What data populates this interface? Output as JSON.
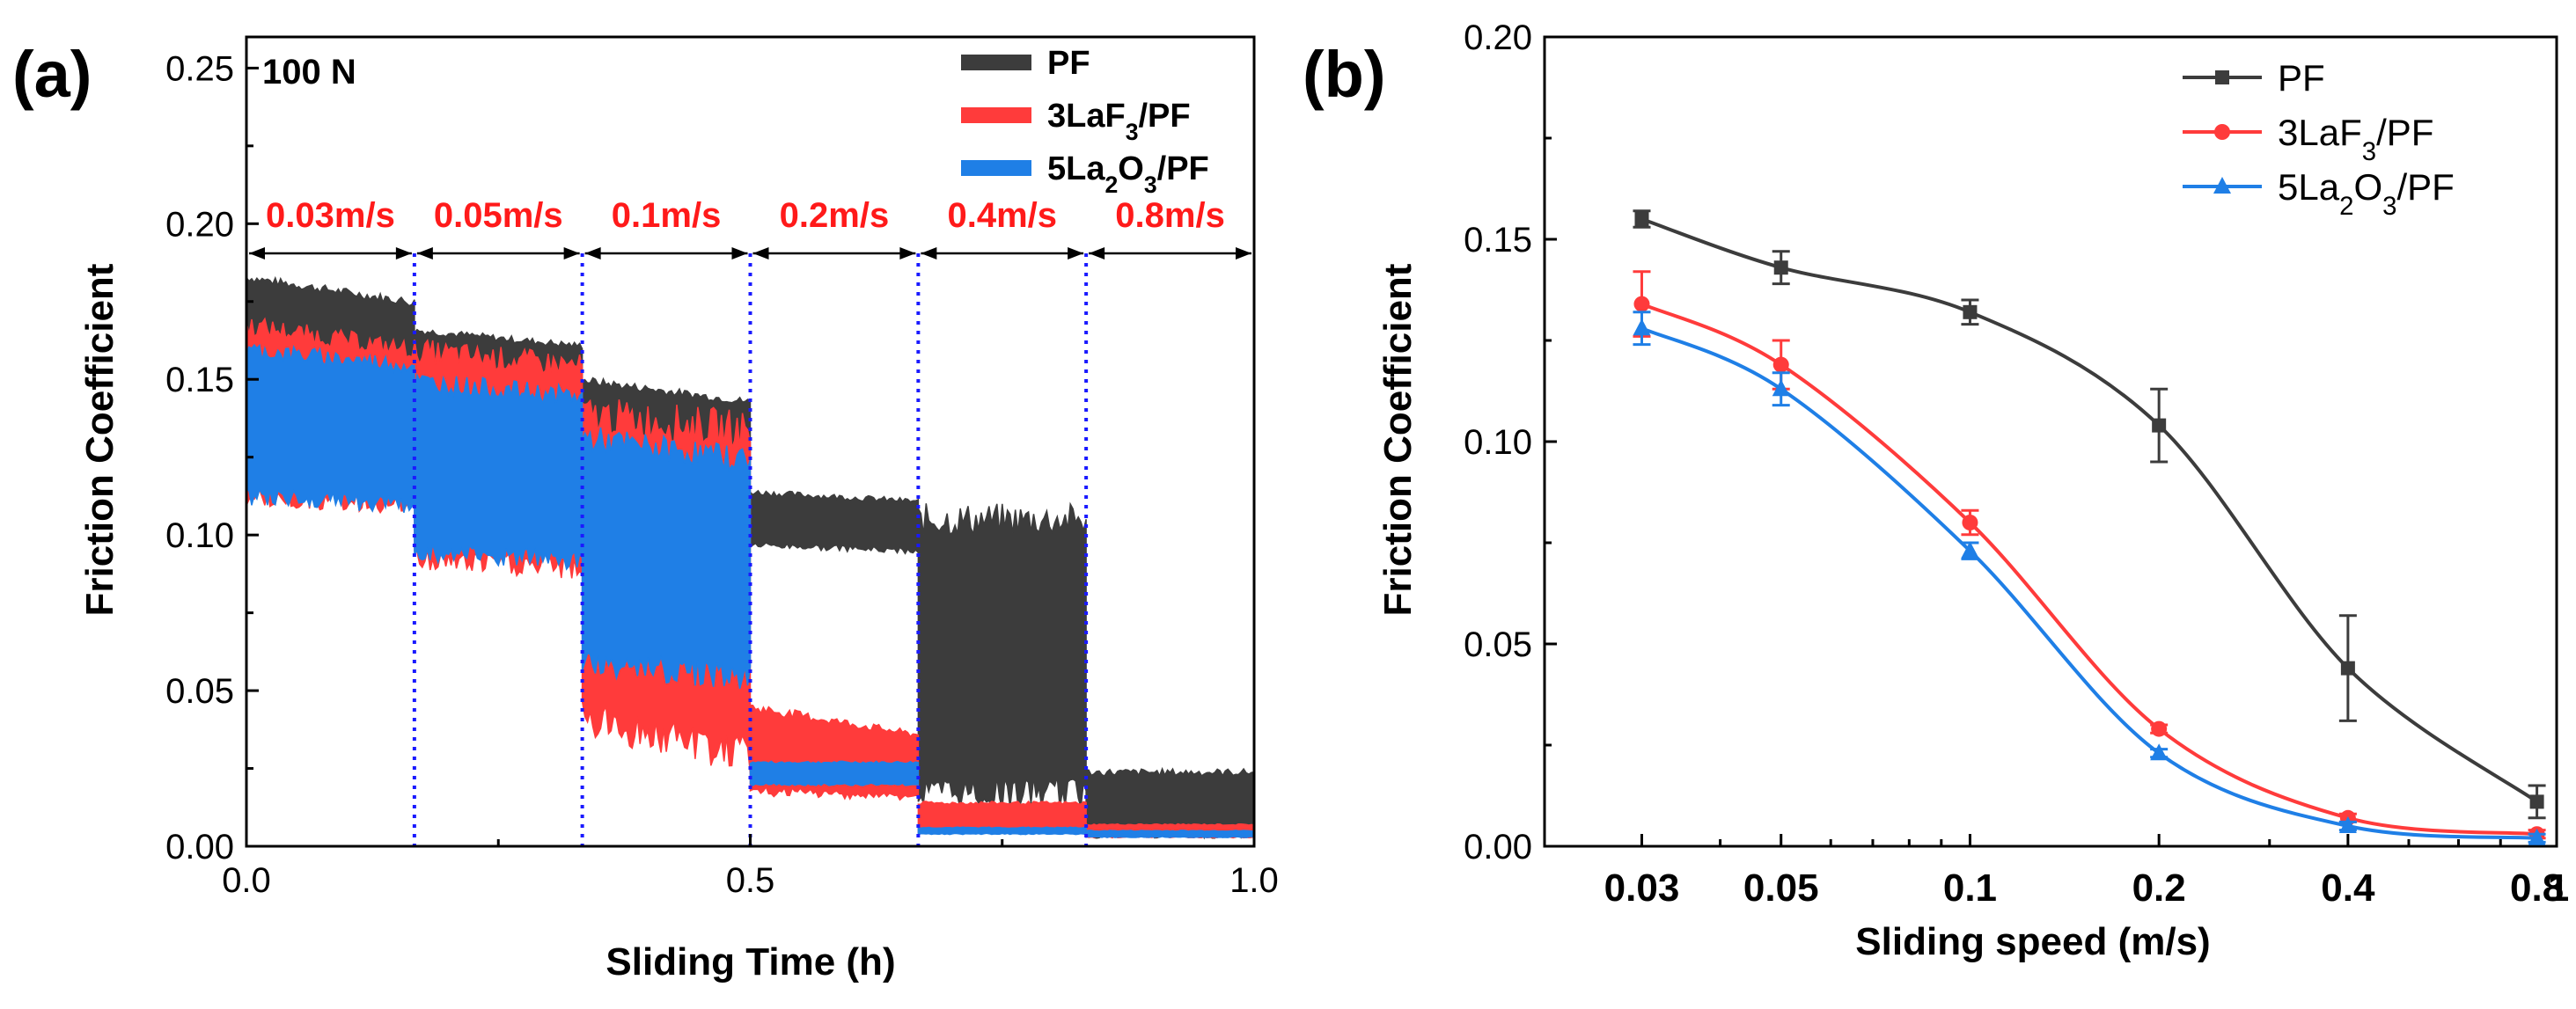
{
  "panels": {
    "a": "(a)",
    "b": "(b)"
  },
  "colors": {
    "PF": "#3c3c3c",
    "LaF3": "#ff3b3b",
    "La2O3": "#1f7fe6",
    "segment_label": "#ff1a1a",
    "divider": "#1a1aff"
  },
  "chart_data": [
    {
      "type": "line",
      "panel": "a",
      "xlabel": "Sliding Time (h)",
      "ylabel": "Friction Coefficient",
      "xlim": [
        0.0,
        1.0
      ],
      "ylim": [
        0.0,
        0.26
      ],
      "xticks": [
        "0.0",
        "0.5",
        "1.0"
      ],
      "yticks": [
        "0.00",
        "0.05",
        "0.10",
        "0.15",
        "0.20",
        "0.25"
      ],
      "annotation": "100 N",
      "segment_boundaries": [
        0.1667,
        0.3333,
        0.5,
        0.6667,
        0.8333
      ],
      "segments": [
        {
          "label": "0.03m/s",
          "start": 0.0,
          "end": 0.1667
        },
        {
          "label": "0.05m/s",
          "start": 0.1667,
          "end": 0.3333
        },
        {
          "label": "0.1m/s",
          "start": 0.3333,
          "end": 0.5
        },
        {
          "label": "0.2m/s",
          "start": 0.5,
          "end": 0.6667
        },
        {
          "label": "0.4m/s",
          "start": 0.6667,
          "end": 0.8333
        },
        {
          "label": "0.8m/s",
          "start": 0.8333,
          "end": 1.0
        }
      ],
      "series": [
        {
          "name": "PF",
          "color": "#3c3c3c",
          "bands": [
            {
              "x0": 0.0,
              "x1": 0.1667,
              "lo": [
                0.16,
                0.15
              ],
              "hi": [
                0.183,
                0.175
              ]
            },
            {
              "x0": 0.1667,
              "x1": 0.3333,
              "lo": [
                0.146,
                0.142
              ],
              "hi": [
                0.166,
                0.161
              ]
            },
            {
              "x0": 0.3333,
              "x1": 0.5,
              "lo": [
                0.126,
                0.122
              ],
              "hi": [
                0.15,
                0.143
              ]
            },
            {
              "x0": 0.5,
              "x1": 0.6667,
              "lo": [
                0.097,
                0.095
              ],
              "hi": [
                0.114,
                0.111
              ]
            },
            {
              "x0": 0.6667,
              "x1": 0.8333,
              "lo": [
                0.018,
                0.018
              ],
              "hi": [
                0.106,
                0.106
              ]
            },
            {
              "x0": 0.8333,
              "x1": 1.0,
              "lo": [
                0.004,
                0.004
              ],
              "hi": [
                0.024,
                0.024
              ]
            }
          ]
        },
        {
          "name": "3LaF3/PF",
          "color": "#ff3b3b",
          "bands": [
            {
              "x0": 0.0,
              "x1": 0.1667,
              "lo": [
                0.113,
                0.11
              ],
              "hi": [
                0.168,
                0.16
              ]
            },
            {
              "x0": 0.1667,
              "x1": 0.3333,
              "lo": [
                0.093,
                0.09
              ],
              "hi": [
                0.16,
                0.155
              ]
            },
            {
              "x0": 0.3333,
              "x1": 0.5,
              "lo": [
                0.042,
                0.03
              ],
              "hi": [
                0.14,
                0.135
              ]
            },
            {
              "x0": 0.5,
              "x1": 0.6667,
              "lo": [
                0.018,
                0.016
              ],
              "hi": [
                0.045,
                0.036
              ]
            },
            {
              "x0": 0.6667,
              "x1": 0.8333,
              "lo": [
                0.005,
                0.005
              ],
              "hi": [
                0.014,
                0.014
              ]
            },
            {
              "x0": 0.8333,
              "x1": 1.0,
              "lo": [
                0.003,
                0.003
              ],
              "hi": [
                0.007,
                0.007
              ]
            }
          ]
        },
        {
          "name": "5La2O3/PF",
          "color": "#1f7fe6",
          "bands": [
            {
              "x0": 0.0,
              "x1": 0.1667,
              "lo": [
                0.113,
                0.11
              ],
              "hi": [
                0.16,
                0.155
              ]
            },
            {
              "x0": 0.1667,
              "x1": 0.3333,
              "lo": [
                0.095,
                0.092
              ],
              "hi": [
                0.15,
                0.145
              ]
            },
            {
              "x0": 0.3333,
              "x1": 0.5,
              "lo": [
                0.06,
                0.055
              ],
              "hi": [
                0.132,
                0.125
              ]
            },
            {
              "x0": 0.5,
              "x1": 0.6667,
              "lo": [
                0.02,
                0.02
              ],
              "hi": [
                0.027,
                0.027
              ]
            },
            {
              "x0": 0.6667,
              "x1": 0.8333,
              "lo": [
                0.004,
                0.004
              ],
              "hi": [
                0.006,
                0.006
              ]
            },
            {
              "x0": 0.8333,
              "x1": 1.0,
              "lo": [
                0.003,
                0.003
              ],
              "hi": [
                0.005,
                0.005
              ]
            }
          ]
        }
      ],
      "legend": {
        "position": "top-right",
        "entries": [
          "PF",
          "3LaF3/PF",
          "5La2O3/PF"
        ]
      }
    },
    {
      "type": "line",
      "panel": "b",
      "xlabel": "Sliding speed (m/s)",
      "ylabel": "Friction Coefficient",
      "xscale": "log",
      "xlim": [
        0.021,
        0.86
      ],
      "ylim": [
        0.0,
        0.2
      ],
      "x": [
        0.03,
        0.05,
        0.1,
        0.2,
        0.4,
        0.8
      ],
      "xticks": [
        "0.03",
        "0.05",
        "0.1",
        "0.2",
        "0.4",
        "0.8"
      ],
      "xticks_extra": [
        "1"
      ],
      "yticks": [
        "0.00",
        "0.05",
        "0.10",
        "0.15",
        "0.20"
      ],
      "series": [
        {
          "name": "PF",
          "marker": "square",
          "color": "#3c3c3c",
          "values": [
            0.155,
            0.143,
            0.132,
            0.104,
            0.044,
            0.011
          ],
          "errors": [
            0.002,
            0.004,
            0.003,
            0.009,
            0.013,
            0.004
          ]
        },
        {
          "name": "3LaF3/PF",
          "marker": "circle",
          "color": "#ff3b3b",
          "values": [
            0.134,
            0.119,
            0.08,
            0.029,
            0.007,
            0.003
          ],
          "errors": [
            0.008,
            0.006,
            0.003,
            0.001,
            0.001,
            0.001
          ]
        },
        {
          "name": "5La2O3/PF",
          "marker": "triangle",
          "color": "#1f7fe6",
          "values": [
            0.128,
            0.113,
            0.073,
            0.023,
            0.005,
            0.002
          ],
          "errors": [
            0.004,
            0.004,
            0.002,
            0.001,
            0.001,
            0.001
          ]
        }
      ],
      "legend": {
        "position": "top-right",
        "entries": [
          "PF",
          "3LaF3/PF",
          "5La2O3/PF"
        ]
      }
    }
  ]
}
